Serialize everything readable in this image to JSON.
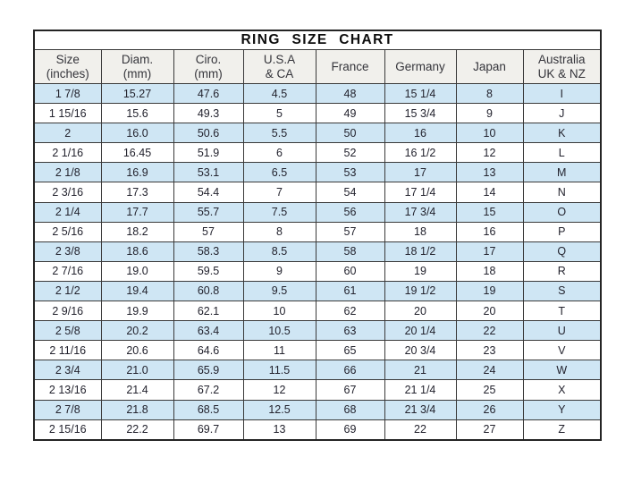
{
  "chart_data": {
    "type": "table",
    "title": "RING SIZE CHART",
    "columns": [
      {
        "label": "Size",
        "sub": "(inches)"
      },
      {
        "label": "Diam.",
        "sub": "(mm)"
      },
      {
        "label": "Ciro.",
        "sub": "(mm)"
      },
      {
        "label": "U.S.A",
        "sub": "& CA"
      },
      {
        "label": "France",
        "sub": ""
      },
      {
        "label": "Germany",
        "sub": ""
      },
      {
        "label": "Japan",
        "sub": ""
      },
      {
        "label": "Australia",
        "sub": "UK & NZ"
      }
    ],
    "rows": [
      [
        "1 7/8",
        "15.27",
        "47.6",
        "4.5",
        "48",
        "15 1/4",
        "8",
        "I"
      ],
      [
        "1 15/16",
        "15.6",
        "49.3",
        "5",
        "49",
        "15 3/4",
        "9",
        "J"
      ],
      [
        "2",
        "16.0",
        "50.6",
        "5.5",
        "50",
        "16",
        "10",
        "K"
      ],
      [
        "2 1/16",
        "16.45",
        "51.9",
        "6",
        "52",
        "16 1/2",
        "12",
        "L"
      ],
      [
        "2 1/8",
        "16.9",
        "53.1",
        "6.5",
        "53",
        "17",
        "13",
        "M"
      ],
      [
        "2 3/16",
        "17.3",
        "54.4",
        "7",
        "54",
        "17 1/4",
        "14",
        "N"
      ],
      [
        "2 1/4",
        "17.7",
        "55.7",
        "7.5",
        "56",
        "17 3/4",
        "15",
        "O"
      ],
      [
        "2 5/16",
        "18.2",
        "57",
        "8",
        "57",
        "18",
        "16",
        "P"
      ],
      [
        "2 3/8",
        "18.6",
        "58.3",
        "8.5",
        "58",
        "18 1/2",
        "17",
        "Q"
      ],
      [
        "2 7/16",
        "19.0",
        "59.5",
        "9",
        "60",
        "19",
        "18",
        "R"
      ],
      [
        "2 1/2",
        "19.4",
        "60.8",
        "9.5",
        "61",
        "19 1/2",
        "19",
        "S"
      ],
      [
        "2 9/16",
        "19.9",
        "62.1",
        "10",
        "62",
        "20",
        "20",
        "T"
      ],
      [
        "2 5/8",
        "20.2",
        "63.4",
        "10.5",
        "63",
        "20 1/4",
        "22",
        "U"
      ],
      [
        "2 11/16",
        "20.6",
        "64.6",
        "11",
        "65",
        "20 3/4",
        "23",
        "V"
      ],
      [
        "2 3/4",
        "21.0",
        "65.9",
        "11.5",
        "66",
        "21",
        "24",
        "W"
      ],
      [
        "2 13/16",
        "21.4",
        "67.2",
        "12",
        "67",
        "21 1/4",
        "25",
        "X"
      ],
      [
        "2 7/8",
        "21.8",
        "68.5",
        "12.5",
        "68",
        "21 3/4",
        "26",
        "Y"
      ],
      [
        "2 15/16",
        "22.2",
        "69.7",
        "13",
        "69",
        "22",
        "27",
        "Z"
      ]
    ],
    "layout": {
      "row_alt_color": "#cfe6f4",
      "row_base_color": "#ffffff",
      "header_bg_color": "#f1f0ec",
      "border_color": "#3a3a3a",
      "grid": true,
      "legend": false
    }
  }
}
